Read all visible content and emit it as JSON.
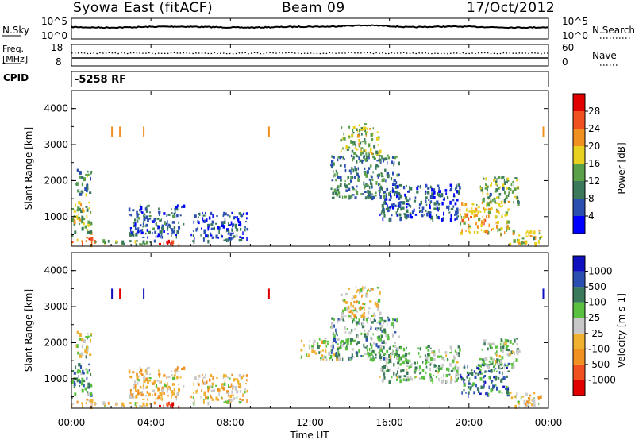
{
  "header": {
    "station": "Syowa East (fitACF)",
    "beam": "Beam 09",
    "date": "17/Oct/2012"
  },
  "strip_noise": {
    "left_label": "N.Sky",
    "right_label": "N.Search",
    "left_ticks": [
      "10^5",
      "10^0"
    ],
    "right_ticks": [
      "10^5",
      "10^0"
    ]
  },
  "strip_freq": {
    "left_label_line1": "Freq.",
    "left_label_line2": "[MHz]",
    "right_label": "Nave",
    "left_ticks": [
      "18",
      "8"
    ],
    "right_ticks": [
      "60",
      "0"
    ]
  },
  "strip_cpid": {
    "label": "CPID",
    "value": "-5258 RF"
  },
  "x_axis": {
    "title": "Time UT",
    "ticks": [
      "00:00",
      "04:00",
      "08:00",
      "12:00",
      "16:00",
      "20:00",
      "00:00"
    ]
  },
  "panels": [
    {
      "ylabel": "Slant Range [km]",
      "yticks": [
        "1000",
        "2000",
        "3000",
        "4000"
      ],
      "colorbar_label": "Power [dB]",
      "colorbar_ticks": [
        "4",
        "8",
        "12",
        "16",
        "20",
        "24",
        "28"
      ]
    },
    {
      "ylabel": "Slant Range [km]",
      "yticks": [
        "1000",
        "2000",
        "3000",
        "4000"
      ],
      "colorbar_label": "Velocity [m s-1]",
      "colorbar_ticks": [
        "-1000",
        "-500",
        "-100",
        "-25",
        "25",
        "100",
        "500",
        "1000"
      ]
    }
  ],
  "chart_data": {
    "type": "heatmap",
    "x_label": "Time UT",
    "x_range_hours": [
      0,
      24
    ],
    "y_label": "Slant Range [km]",
    "y_range_km": [
      180,
      4500
    ],
    "panels": [
      {
        "variable": "Power",
        "units": "dB",
        "scale": [
          0,
          30
        ],
        "colors": [
          "#0000ff",
          "#2a4fb0",
          "#3a7a5a",
          "#5aa048",
          "#e8d020",
          "#f09020",
          "#f05020",
          "#e00000"
        ],
        "clusters": [
          {
            "t": [
              0.0,
              1.2
            ],
            "r": [
              200,
              400
            ],
            "v": 22
          },
          {
            "t": [
              0.0,
              1.0
            ],
            "r": [
              450,
              1400
            ],
            "v": 14
          },
          {
            "t": [
              0.2,
              1.0
            ],
            "r": [
              1600,
              2300
            ],
            "v": 10
          },
          {
            "t": [
              1.0,
              4.2
            ],
            "r": [
              200,
              330
            ],
            "v": 12
          },
          {
            "t": [
              4.2,
              5.4
            ],
            "r": [
              200,
              330
            ],
            "v": 26
          },
          {
            "t": [
              2.8,
              5.6
            ],
            "r": [
              400,
              1300
            ],
            "v": 7
          },
          {
            "t": [
              6.0,
              8.8
            ],
            "r": [
              300,
              1100
            ],
            "v": 6
          },
          {
            "t": [
              13.5,
              15.5
            ],
            "r": [
              2700,
              3550
            ],
            "v": 14
          },
          {
            "t": [
              13.0,
              16.5
            ],
            "r": [
              1500,
              2700
            ],
            "v": 9
          },
          {
            "t": [
              15.5,
              19.5
            ],
            "r": [
              900,
              1900
            ],
            "v": 6
          },
          {
            "t": [
              19.5,
              22.0
            ],
            "r": [
              500,
              1400
            ],
            "v": 18
          },
          {
            "t": [
              20.5,
              22.5
            ],
            "r": [
              1300,
              2100
            ],
            "v": 12
          },
          {
            "t": [
              22.0,
              23.6
            ],
            "r": [
              200,
              600
            ],
            "v": 16
          }
        ],
        "streaks": [
          {
            "t": 2.0,
            "r": [
              3200,
              3500
            ],
            "v": 19
          },
          {
            "t": 2.4,
            "r": [
              3200,
              3500
            ],
            "v": 20
          },
          {
            "t": 3.6,
            "r": [
              3200,
              3500
            ],
            "v": 19
          },
          {
            "t": 9.9,
            "r": [
              3200,
              3500
            ],
            "v": 20
          },
          {
            "t": 23.7,
            "r": [
              3200,
              3500
            ],
            "v": 20
          }
        ]
      },
      {
        "variable": "Velocity",
        "units": "m s-1",
        "scale": [
          -1000,
          1000
        ],
        "colors": [
          "#e00000",
          "#f05020",
          "#f09020",
          "#f0b030",
          "#c8c8c8",
          "#5ac040",
          "#3a7a5a",
          "#2a4fb0",
          "#1010c0"
        ],
        "clusters": [
          {
            "t": [
              0.0,
              1.2
            ],
            "r": [
              200,
              400
            ],
            "v": -300
          },
          {
            "t": [
              0.0,
              1.0
            ],
            "r": [
              450,
              1400
            ],
            "v": 400
          },
          {
            "t": [
              0.2,
              1.0
            ],
            "r": [
              1600,
              2300
            ],
            "v": 0
          },
          {
            "t": [
              1.0,
              4.2
            ],
            "r": [
              200,
              330
            ],
            "v": -120
          },
          {
            "t": [
              4.2,
              5.4
            ],
            "r": [
              200,
              330
            ],
            "v": -900
          },
          {
            "t": [
              2.8,
              5.6
            ],
            "r": [
              400,
              1300
            ],
            "v": -200
          },
          {
            "t": [
              6.0,
              8.8
            ],
            "r": [
              300,
              1100
            ],
            "v": -150
          },
          {
            "t": [
              11.5,
              13.5
            ],
            "r": [
              1500,
              2100
            ],
            "v": 0
          },
          {
            "t": [
              13.5,
              15.5
            ],
            "r": [
              2700,
              3550
            ],
            "v": -120
          },
          {
            "t": [
              13.0,
              16.5
            ],
            "r": [
              1500,
              2700
            ],
            "v": 300
          },
          {
            "t": [
              15.5,
              19.5
            ],
            "r": [
              900,
              1900
            ],
            "v": 200
          },
          {
            "t": [
              19.5,
              22.0
            ],
            "r": [
              500,
              1400
            ],
            "v": 500
          },
          {
            "t": [
              20.5,
              22.5
            ],
            "r": [
              1300,
              2100
            ],
            "v": 150
          },
          {
            "t": [
              22.0,
              23.6
            ],
            "r": [
              200,
              600
            ],
            "v": -150
          }
        ],
        "streaks": [
          {
            "t": 2.0,
            "r": [
              3200,
              3500
            ],
            "v": 900
          },
          {
            "t": 2.4,
            "r": [
              3200,
              3500
            ],
            "v": -900
          },
          {
            "t": 3.6,
            "r": [
              3200,
              3500
            ],
            "v": 900
          },
          {
            "t": 9.9,
            "r": [
              3200,
              3500
            ],
            "v": -800
          },
          {
            "t": 23.7,
            "r": [
              3200,
              3500
            ],
            "v": 900
          }
        ]
      }
    ]
  }
}
